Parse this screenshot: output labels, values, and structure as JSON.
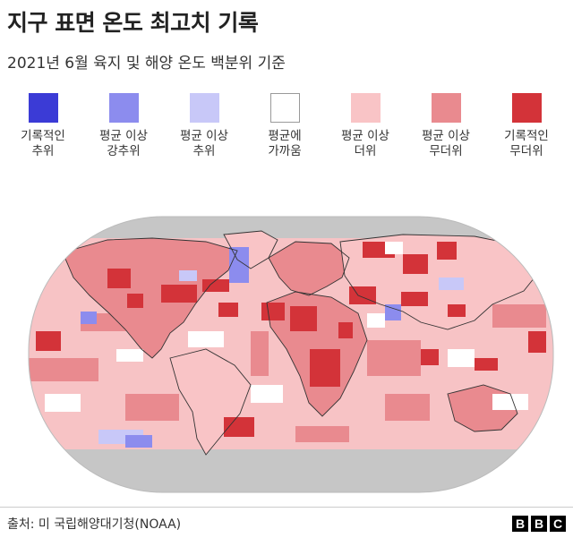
{
  "header": {
    "title": "지구 표면 온도 최고치 기록",
    "subtitle": "2021년 6월 육지 및 해양 온도 백분위 기준"
  },
  "legend": [
    {
      "label": "기록적인\n추위",
      "color": "#3b3bd6"
    },
    {
      "label": "평균 이상\n강추위",
      "color": "#8c8cee"
    },
    {
      "label": "평균 이상\n추위",
      "color": "#c8c8f8"
    },
    {
      "label": "평균에\n가까움",
      "color": "#ffffff"
    },
    {
      "label": "평균 이상\n더위",
      "color": "#f9c4c6"
    },
    {
      "label": "평균 이상\n무더위",
      "color": "#e98a8f"
    },
    {
      "label": "기록적인\n무더위",
      "color": "#d33339"
    }
  ],
  "map": {
    "no_data_color": "#c6c6c6",
    "border_color": "#333333"
  },
  "footer": {
    "source": "출처: 미 국립해양대기청(NOAA)",
    "logo": [
      "B",
      "B",
      "C"
    ]
  }
}
